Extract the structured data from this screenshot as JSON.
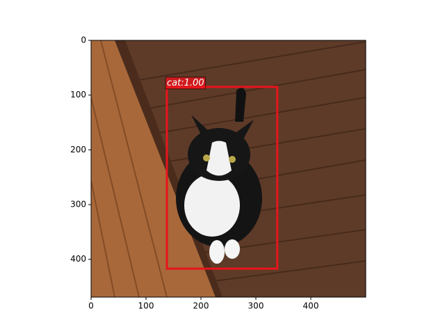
{
  "chart_data": {
    "type": "image",
    "xlim": [
      0,
      500
    ],
    "ylim": [
      469,
      0
    ],
    "xticks": [
      0,
      100,
      200,
      300,
      400
    ],
    "yticks": [
      0,
      100,
      200,
      300,
      400
    ],
    "boxes": [
      {
        "label": "cat:1.00",
        "x0": 138,
        "y0": 85,
        "x1": 339,
        "y1": 417,
        "color": "#e8141c"
      }
    ]
  }
}
